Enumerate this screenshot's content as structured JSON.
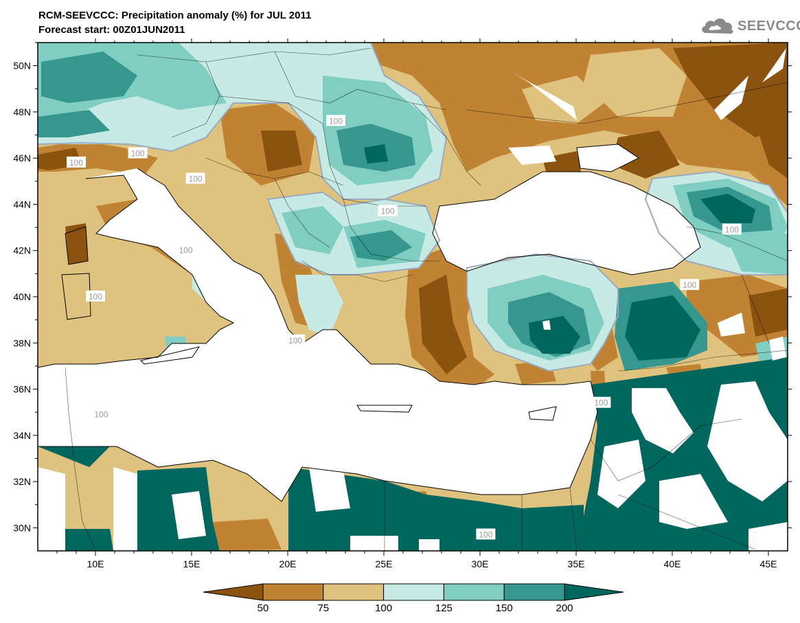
{
  "header": {
    "title": "RCM-SEEVCCC: Precipitation anomaly (%) for JUL 2011",
    "subtitle": "Forecast start: 00Z01JUN2011"
  },
  "logo": {
    "text": "SEEVCCC",
    "icon": "cloud-icon"
  },
  "map": {
    "lon_range": [
      7,
      46
    ],
    "lat_range": [
      29,
      51
    ],
    "lon_ticks": [
      "10E",
      "15E",
      "20E",
      "25E",
      "30E",
      "35E",
      "40E",
      "45E"
    ],
    "lat_ticks": [
      "50N",
      "48N",
      "46N",
      "44N",
      "42N",
      "40N",
      "38N",
      "36N",
      "34N",
      "32N",
      "30N"
    ],
    "contour_labels": [
      "100",
      "100",
      "100",
      "100",
      "100",
      "100",
      "100",
      "100",
      "100",
      "100",
      "100",
      "100",
      "100"
    ]
  },
  "colorbar": {
    "labels": [
      "50",
      "75",
      "100",
      "125",
      "150",
      "200"
    ],
    "colors": [
      "#8c5210",
      "#bf8333",
      "#dfc27d",
      "#c7eae5",
      "#80cdc1",
      "#35978f",
      "#01665e"
    ]
  }
}
